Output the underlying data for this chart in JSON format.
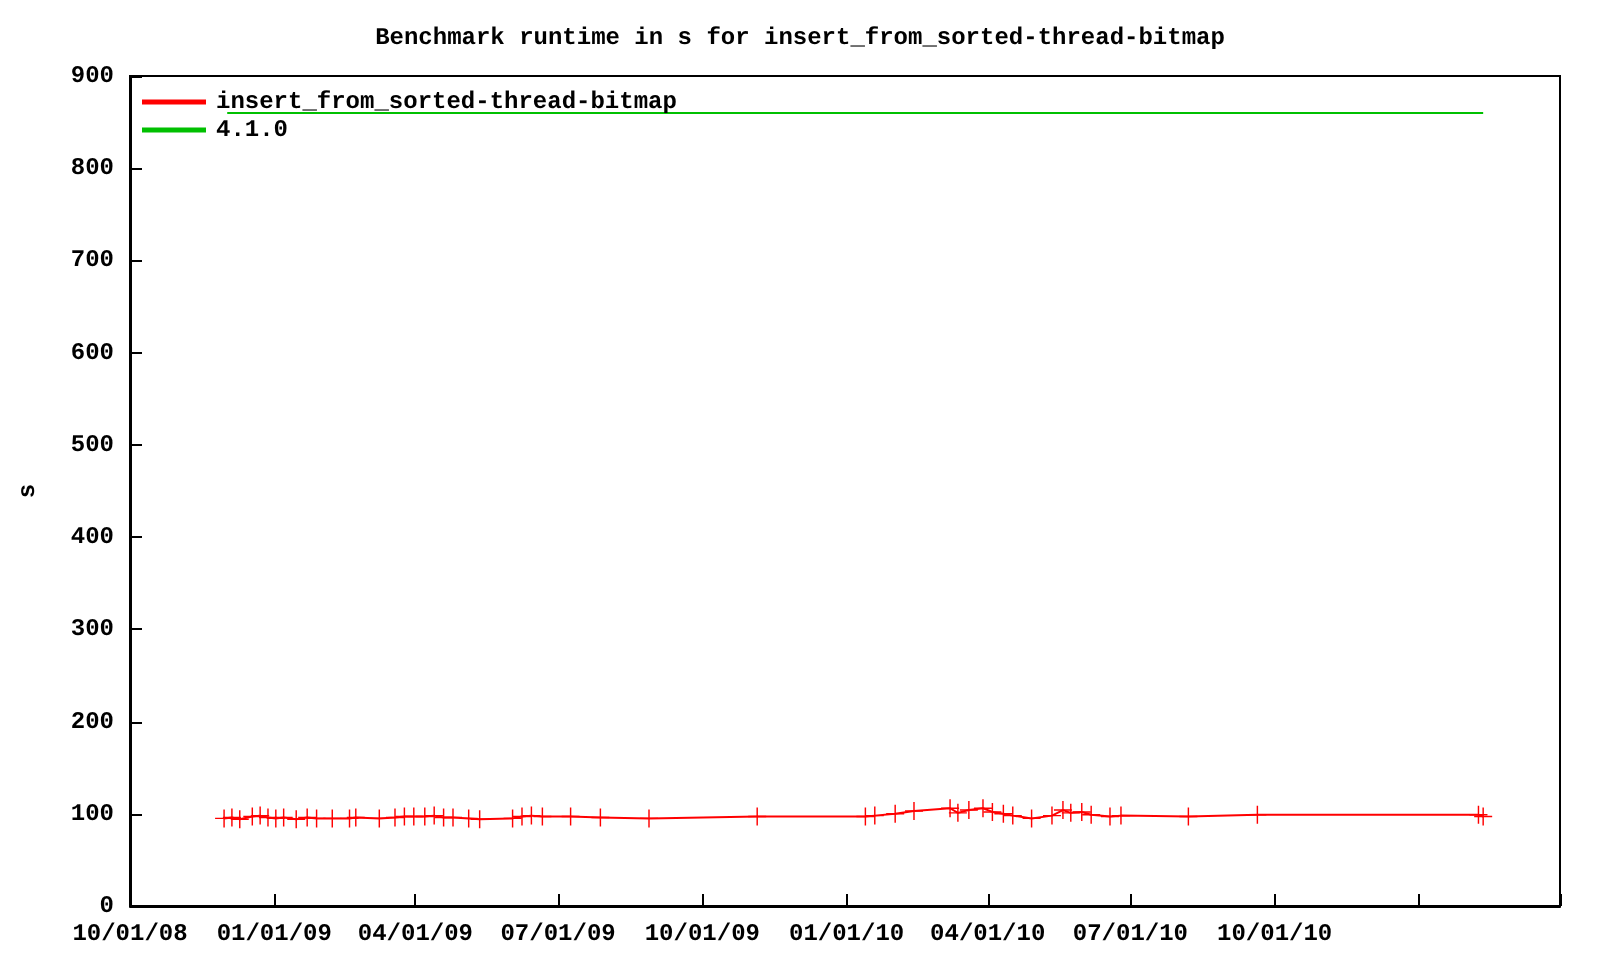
{
  "chart_data": {
    "type": "line",
    "title": "Benchmark runtime in s for insert_from_sorted-thread-bitmap",
    "ylabel": "s",
    "legend": "top left",
    "grid": false,
    "xlim": [
      "2008-10-01",
      "2011-04-01"
    ],
    "xticks": [
      {
        "value": "2008-10-01",
        "label": "10/01/08"
      },
      {
        "value": "2009-01-01",
        "label": "01/01/09"
      },
      {
        "value": "2009-04-01",
        "label": "04/01/09"
      },
      {
        "value": "2009-07-01",
        "label": "07/01/09"
      },
      {
        "value": "2009-10-01",
        "label": "10/01/09"
      },
      {
        "value": "2010-01-01",
        "label": "01/01/10"
      },
      {
        "value": "2010-04-01",
        "label": "04/01/10"
      },
      {
        "value": "2010-07-01",
        "label": "07/01/10"
      },
      {
        "value": "2010-10-01",
        "label": "10/01/10"
      },
      {
        "value": "2011-01-01",
        "label": null
      },
      {
        "value": "2011-04-01",
        "label": null
      }
    ],
    "ylim": [
      0,
      900
    ],
    "yticks": [
      0,
      100,
      200,
      300,
      400,
      500,
      600,
      700,
      800,
      900
    ],
    "series": [
      {
        "name": "insert_from_sorted-thread-bitmap",
        "color": "#ff0000",
        "marker": "cross",
        "x": [
          "2008-11-30",
          "2008-12-05",
          "2008-12-10",
          "2008-12-18",
          "2008-12-23",
          "2008-12-28",
          "2009-01-02",
          "2009-01-07",
          "2009-01-15",
          "2009-01-22",
          "2009-01-28",
          "2009-02-07",
          "2009-02-18",
          "2009-02-22",
          "2009-03-09",
          "2009-03-19",
          "2009-03-25",
          "2009-03-31",
          "2009-04-07",
          "2009-04-13",
          "2009-04-19",
          "2009-04-25",
          "2009-05-05",
          "2009-05-12",
          "2009-06-02",
          "2009-06-08",
          "2009-06-14",
          "2009-06-21",
          "2009-07-09",
          "2009-07-28",
          "2009-08-28",
          "2009-11-05",
          "2010-01-13",
          "2010-01-19",
          "2010-02-01",
          "2010-02-13",
          "2010-03-08",
          "2010-03-13",
          "2010-03-20",
          "2010-03-29",
          "2010-04-04",
          "2010-04-11",
          "2010-04-17",
          "2010-04-29",
          "2010-05-12",
          "2010-05-19",
          "2010-05-24",
          "2010-05-31",
          "2010-06-06",
          "2010-06-18",
          "2010-06-25",
          "2010-08-07",
          "2010-09-20",
          "2011-02-08",
          "2011-02-11"
        ],
        "values": [
          95,
          96,
          94,
          97,
          98,
          96,
          95,
          96,
          94,
          96,
          95,
          95,
          95,
          96,
          95,
          96,
          97,
          97,
          97,
          98,
          96,
          96,
          95,
          94,
          95,
          97,
          98,
          97,
          97,
          96,
          95,
          97,
          97,
          98,
          100,
          103,
          106,
          101,
          104,
          106,
          102,
          100,
          98,
          95,
          98,
          104,
          101,
          102,
          99,
          97,
          98,
          97,
          99,
          99,
          97
        ]
      },
      {
        "name": "4.1.0",
        "color": "#00c000",
        "marker": "none",
        "x": [
          "2008-12-02",
          "2011-02-11"
        ],
        "values": [
          860,
          860
        ]
      }
    ]
  }
}
